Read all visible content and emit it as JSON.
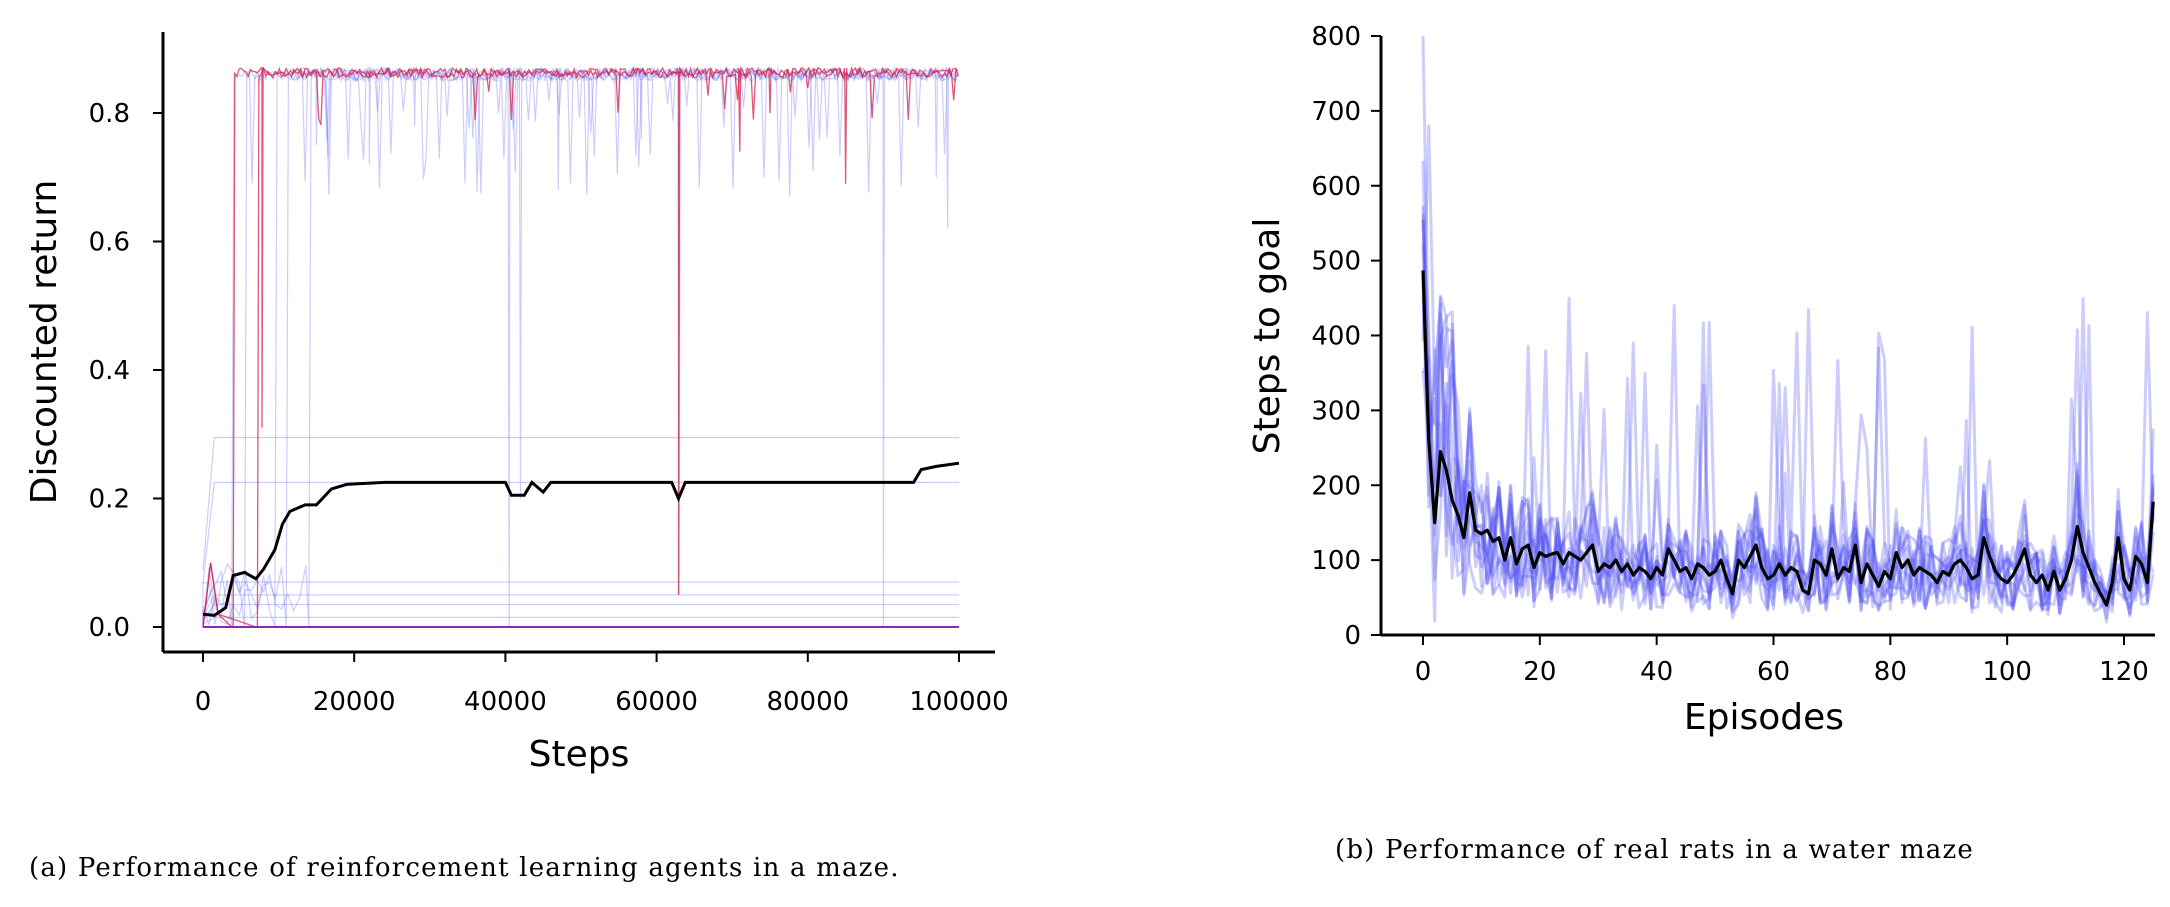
{
  "colors": {
    "agent_blue": "#6f6ff0",
    "agent_red": "#d3224c",
    "mean": "#000000",
    "rat_blue": "#4a4af2"
  },
  "chart_data": [
    {
      "type": "line",
      "xlabel": "Steps",
      "ylabel": "Discounted return",
      "xlim": [
        -5000,
        105000
      ],
      "ylim": [
        -0.04,
        0.93
      ],
      "xticks": [
        0,
        20000,
        40000,
        60000,
        80000,
        100000
      ],
      "yticks": [
        0.0,
        0.2,
        0.4,
        0.6,
        0.8
      ],
      "xtick_labels": [
        "0",
        "20000",
        "40000",
        "60000",
        "80000",
        "100000"
      ],
      "ytick_labels": [
        "0.0",
        "0.2",
        "0.4",
        "0.6",
        "0.8"
      ],
      "caption": "(a) Performance of reinforcement learning agents in a maze.",
      "grid": false,
      "series": [
        {
          "role": "individual agents (high)",
          "color": "blue",
          "plateau": 0.87,
          "rise_steps": [
            3800,
            5500,
            9500,
            11000,
            14000
          ],
          "dips": [
            [
              15000,
              0.75
            ],
            [
              22000,
              0.72
            ],
            [
              28000,
              0.78
            ],
            [
              40500,
              0.0
            ],
            [
              42000,
              0.2
            ],
            [
              47000,
              0.68
            ],
            [
              58000,
              0.76
            ],
            [
              63000,
              0.05
            ],
            [
              90000,
              0.0
            ],
            [
              97000,
              0.7
            ],
            [
              98500,
              0.62
            ]
          ]
        },
        {
          "role": "individual agents (flat)",
          "color": "blue",
          "levels": [
            0.295,
            0.225,
            0.07,
            0.05,
            0.035,
            0.015,
            0.0
          ]
        },
        {
          "role": "individual agents (red)",
          "color": "red",
          "plateau": 0.87,
          "rise_steps": [
            4000,
            7200
          ],
          "dips": [
            [
              7800,
              0.31
            ],
            [
              62900,
              0.05
            ],
            [
              71000,
              0.74
            ],
            [
              75000,
              0.8
            ],
            [
              85000,
              0.69
            ]
          ]
        },
        {
          "role": "mean",
          "color": "black",
          "points": [
            [
              0,
              0.02
            ],
            [
              1500,
              0.018
            ],
            [
              3000,
              0.03
            ],
            [
              4000,
              0.08
            ],
            [
              5500,
              0.085
            ],
            [
              7000,
              0.075
            ],
            [
              8000,
              0.09
            ],
            [
              9500,
              0.12
            ],
            [
              10500,
              0.16
            ],
            [
              11500,
              0.18
            ],
            [
              13500,
              0.19
            ],
            [
              15000,
              0.19
            ],
            [
              17000,
              0.215
            ],
            [
              19000,
              0.222
            ],
            [
              24000,
              0.225
            ],
            [
              40000,
              0.225
            ],
            [
              40800,
              0.205
            ],
            [
              42500,
              0.205
            ],
            [
              43500,
              0.225
            ],
            [
              45000,
              0.21
            ],
            [
              46000,
              0.225
            ],
            [
              62000,
              0.225
            ],
            [
              62900,
              0.2
            ],
            [
              63800,
              0.225
            ],
            [
              94000,
              0.225
            ],
            [
              95000,
              0.245
            ],
            [
              97000,
              0.25
            ],
            [
              100000,
              0.255
            ]
          ]
        }
      ]
    },
    {
      "type": "line",
      "xlabel": "Episodes",
      "ylabel": "Steps to goal",
      "xlim": [
        -7,
        125
      ],
      "ylim": [
        0,
        800
      ],
      "xticks": [
        0,
        20,
        40,
        60,
        80,
        100,
        120
      ],
      "yticks": [
        0,
        100,
        200,
        300,
        400,
        500,
        600,
        700,
        800
      ],
      "xtick_labels": [
        "0",
        "20",
        "40",
        "60",
        "80",
        "100",
        "120"
      ],
      "ytick_labels": [
        "0",
        "100",
        "200",
        "300",
        "400",
        "500",
        "600",
        "700",
        "800"
      ],
      "caption": "(b) Performance of real rats in a water maze",
      "grid": false,
      "individual_rats_count": 12,
      "mean": [
        [
          0,
          487
        ],
        [
          1,
          260
        ],
        [
          2,
          150
        ],
        [
          3,
          245
        ],
        [
          4,
          220
        ],
        [
          5,
          180
        ],
        [
          6,
          160
        ],
        [
          7,
          130
        ],
        [
          8,
          190
        ],
        [
          9,
          140
        ],
        [
          10,
          135
        ],
        [
          11,
          140
        ],
        [
          12,
          125
        ],
        [
          13,
          130
        ],
        [
          14,
          100
        ],
        [
          15,
          130
        ],
        [
          16,
          95
        ],
        [
          17,
          115
        ],
        [
          18,
          120
        ],
        [
          19,
          90
        ],
        [
          20,
          110
        ],
        [
          21,
          105
        ],
        [
          22,
          108
        ],
        [
          23,
          110
        ],
        [
          24,
          95
        ],
        [
          25,
          110
        ],
        [
          26,
          105
        ],
        [
          27,
          100
        ],
        [
          28,
          110
        ],
        [
          29,
          120
        ],
        [
          30,
          85
        ],
        [
          31,
          95
        ],
        [
          32,
          90
        ],
        [
          33,
          100
        ],
        [
          34,
          85
        ],
        [
          35,
          95
        ],
        [
          36,
          80
        ],
        [
          37,
          90
        ],
        [
          38,
          85
        ],
        [
          39,
          75
        ],
        [
          40,
          90
        ],
        [
          41,
          80
        ],
        [
          42,
          115
        ],
        [
          43,
          100
        ],
        [
          44,
          85
        ],
        [
          45,
          90
        ],
        [
          46,
          75
        ],
        [
          47,
          95
        ],
        [
          48,
          90
        ],
        [
          49,
          80
        ],
        [
          50,
          85
        ],
        [
          51,
          100
        ],
        [
          52,
          75
        ],
        [
          53,
          55
        ],
        [
          54,
          100
        ],
        [
          55,
          90
        ],
        [
          56,
          105
        ],
        [
          57,
          120
        ],
        [
          58,
          90
        ],
        [
          59,
          75
        ],
        [
          60,
          80
        ],
        [
          61,
          95
        ],
        [
          62,
          80
        ],
        [
          63,
          90
        ],
        [
          64,
          85
        ],
        [
          65,
          60
        ],
        [
          66,
          55
        ],
        [
          67,
          100
        ],
        [
          68,
          95
        ],
        [
          69,
          80
        ],
        [
          70,
          115
        ],
        [
          71,
          75
        ],
        [
          72,
          90
        ],
        [
          73,
          85
        ],
        [
          74,
          120
        ],
        [
          75,
          70
        ],
        [
          76,
          95
        ],
        [
          77,
          80
        ],
        [
          78,
          65
        ],
        [
          79,
          85
        ],
        [
          80,
          75
        ],
        [
          81,
          110
        ],
        [
          82,
          90
        ],
        [
          83,
          100
        ],
        [
          84,
          80
        ],
        [
          85,
          90
        ],
        [
          86,
          85
        ],
        [
          87,
          80
        ],
        [
          88,
          70
        ],
        [
          89,
          85
        ],
        [
          90,
          80
        ],
        [
          91,
          95
        ],
        [
          92,
          100
        ],
        [
          93,
          90
        ],
        [
          94,
          75
        ],
        [
          95,
          80
        ],
        [
          96,
          130
        ],
        [
          97,
          105
        ],
        [
          98,
          85
        ],
        [
          99,
          75
        ],
        [
          100,
          70
        ],
        [
          101,
          80
        ],
        [
          102,
          95
        ],
        [
          103,
          115
        ],
        [
          104,
          80
        ],
        [
          105,
          70
        ],
        [
          106,
          80
        ],
        [
          107,
          60
        ],
        [
          108,
          85
        ],
        [
          109,
          60
        ],
        [
          110,
          75
        ],
        [
          111,
          100
        ],
        [
          112,
          145
        ],
        [
          113,
          110
        ],
        [
          114,
          90
        ],
        [
          115,
          70
        ],
        [
          116,
          55
        ],
        [
          117,
          40
        ],
        [
          118,
          70
        ],
        [
          119,
          130
        ],
        [
          120,
          75
        ],
        [
          121,
          60
        ],
        [
          122,
          105
        ],
        [
          123,
          95
        ],
        [
          124,
          70
        ],
        [
          125,
          178
        ]
      ]
    }
  ]
}
